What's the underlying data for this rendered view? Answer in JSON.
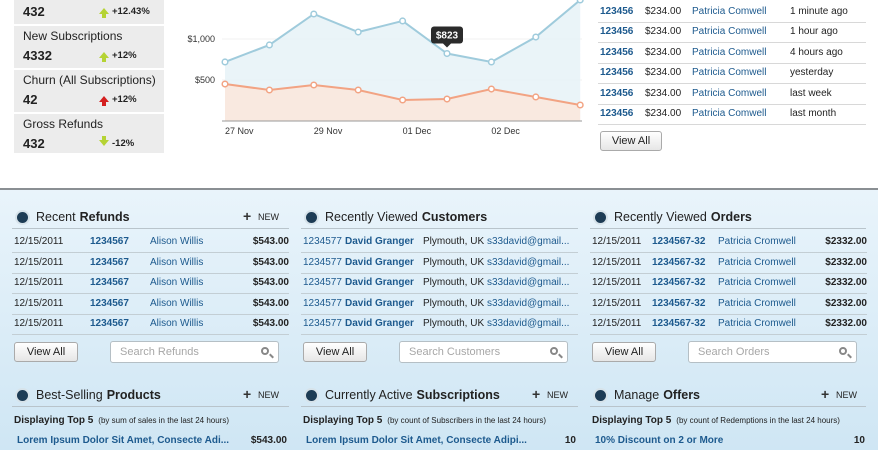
{
  "stats": [
    {
      "value": "432",
      "change": "+12.43%",
      "arrow": "up",
      "arrow_color": "#b5d334"
    },
    {
      "label": "New Subscriptions",
      "value": "4332",
      "change": "+12%",
      "arrow": "up",
      "arrow_color": "#b5d334"
    },
    {
      "label": "Churn (All Subscriptions)",
      "value": "42",
      "change": "+12%",
      "arrow": "up",
      "arrow_color": "#d42020"
    },
    {
      "label": "Gross Refunds",
      "value": "432",
      "change": "-12%",
      "arrow": "down",
      "arrow_color": "#b5d334"
    }
  ],
  "chart_data": {
    "type": "line",
    "categories": [
      "27 Nov",
      null,
      "29 Nov",
      null,
      "01 Dec",
      null,
      "02 Dec",
      null,
      null
    ],
    "series": [
      {
        "color": "#9fcbdc",
        "values": [
          720,
          927,
          1305,
          1085,
          1220,
          823,
          720,
          1024,
          1476
        ],
        "value_labels": [
          null,
          null,
          null,
          null,
          null,
          "$823",
          null,
          null,
          null
        ]
      },
      {
        "color": "#f2a383",
        "values": [
          451,
          378,
          439,
          378,
          256,
          268,
          390,
          293,
          195
        ]
      }
    ],
    "ylim": [
      0,
      1500
    ],
    "yticks": [
      {
        "value": 500,
        "label": "$500"
      },
      {
        "value": 1000,
        "label": "$1,000"
      }
    ],
    "grid": true
  },
  "recent_list": {
    "rows": [
      [
        "123456",
        "$234.00",
        "Patricia Comwell",
        "1 minute ago"
      ],
      [
        "123456",
        "$234.00",
        "Patricia Comwell",
        "1 hour ago"
      ],
      [
        "123456",
        "$234.00",
        "Patricia Comwell",
        "4 hours ago"
      ],
      [
        "123456",
        "$234.00",
        "Patricia Comwell",
        "yesterday"
      ],
      [
        "123456",
        "$234.00",
        "Patricia Comwell",
        "last week"
      ],
      [
        "123456",
        "$234.00",
        "Patricia Comwell",
        "last month"
      ]
    ],
    "button": "View All"
  },
  "panels": [
    {
      "title_prefix": "Recent",
      "title_bold": "Refunds",
      "new": "NEW",
      "rows": [
        [
          "12/15/2011",
          "1234567",
          "Alison Willis",
          "$543.00"
        ],
        [
          "12/15/2011",
          "1234567",
          "Alison Willis",
          "$543.00"
        ],
        [
          "12/15/2011",
          "1234567",
          "Alison Willis",
          "$543.00"
        ],
        [
          "12/15/2011",
          "1234567",
          "Alison Willis",
          "$543.00"
        ],
        [
          "12/15/2011",
          "1234567",
          "Alison Willis",
          "$543.00"
        ]
      ],
      "button": "View All",
      "search": "Search Refunds"
    },
    {
      "title_prefix": "Recently Viewed",
      "title_bold": "Customers",
      "rows": [
        [
          "1234577",
          "David Granger",
          "Plymouth, UK",
          "s33david@gmail..."
        ],
        [
          "1234577",
          "David Granger",
          "Plymouth, UK",
          "s33david@gmail..."
        ],
        [
          "1234577",
          "David Granger",
          "Plymouth, UK",
          "s33david@gmail..."
        ],
        [
          "1234577",
          "David Granger",
          "Plymouth, UK",
          "s33david@gmail..."
        ],
        [
          "1234577",
          "David Granger",
          "Plymouth, UK",
          "s33david@gmail..."
        ]
      ],
      "button": "View All",
      "search": "Search Customers"
    },
    {
      "title_prefix": "Recently Viewed",
      "title_bold": "Orders",
      "rows": [
        [
          "12/15/2011",
          "1234567-32",
          "Patricia Cromwell",
          "$2332.00"
        ],
        [
          "12/15/2011",
          "1234567-32",
          "Patricia Cromwell",
          "$2332.00"
        ],
        [
          "12/15/2011",
          "1234567-32",
          "Patricia Cromwell",
          "$2332.00"
        ],
        [
          "12/15/2011",
          "1234567-32",
          "Patricia Cromwell",
          "$2332.00"
        ],
        [
          "12/15/2011",
          "1234567-32",
          "Patricia Cromwell",
          "$2332.00"
        ]
      ],
      "button": "View All",
      "search": "Search Orders"
    }
  ],
  "bottom_panels": [
    {
      "title_prefix": "Best-Selling",
      "title_bold": "Products",
      "new": "NEW",
      "subtitle_bold": "Displaying Top 5",
      "subtitle": "(by sum of sales in the last 24 hours)",
      "rows": [
        [
          "Lorem Ipsum Dolor Sit Amet, Consecte Adi...",
          "$543.00"
        ]
      ]
    },
    {
      "title_prefix": "Currently Active",
      "title_bold": "Subscriptions",
      "new": "NEW",
      "subtitle_bold": "Displaying Top 5",
      "subtitle": "(by count of Subscribers in the last 24 hours)",
      "rows": [
        [
          "Lorem Ipsum Dolor Sit Amet, Consecte Adipi...",
          "10"
        ]
      ]
    },
    {
      "title_prefix": "Manage",
      "title_bold": "Offers",
      "new": "NEW",
      "subtitle_bold": "Displaying Top 5",
      "subtitle": "(by count of Redemptions in the last 24 hours)",
      "rows": [
        [
          "10% Discount on 2 or More",
          "10"
        ]
      ]
    }
  ]
}
